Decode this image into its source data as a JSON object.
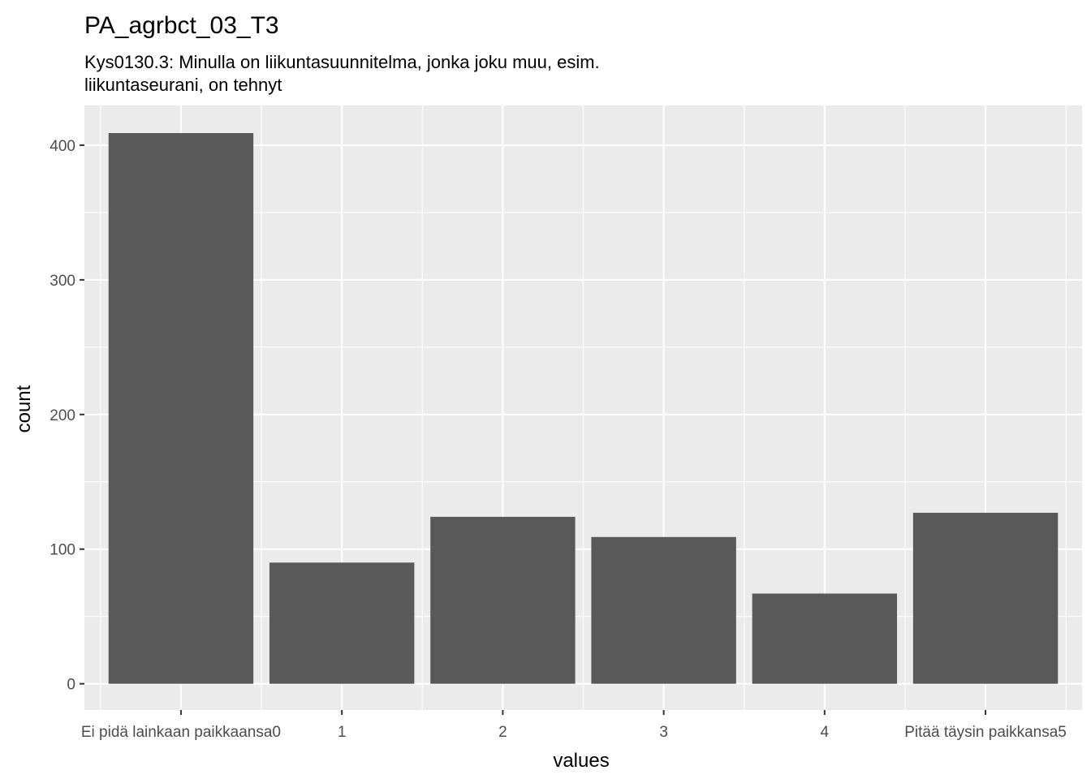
{
  "chart_data": {
    "type": "bar",
    "title": "PA_agrbct_03_T3",
    "subtitle_lines": [
      "Kys0130.3: Minulla on liikuntasuunnitelma, jonka joku muu, esim.",
      "liikuntaseurani, on tehnyt"
    ],
    "xlabel": "values",
    "ylabel": "count",
    "categories": [
      "Ei pidä lainkaan paikkaansa0",
      "1",
      "2",
      "3",
      "4",
      "Pitää täysin paikkansa5"
    ],
    "values": [
      409,
      90,
      124,
      109,
      67,
      127
    ],
    "ylim": [
      -19.5,
      429.5
    ],
    "yticks": [
      0,
      100,
      200,
      300,
      400
    ],
    "grid": true,
    "colors": {
      "panel_background": "#ebebeb",
      "grid": "#ffffff",
      "bar": "#595959",
      "tick_text": "#4d4d4d",
      "tick_mark": "#333333"
    }
  }
}
